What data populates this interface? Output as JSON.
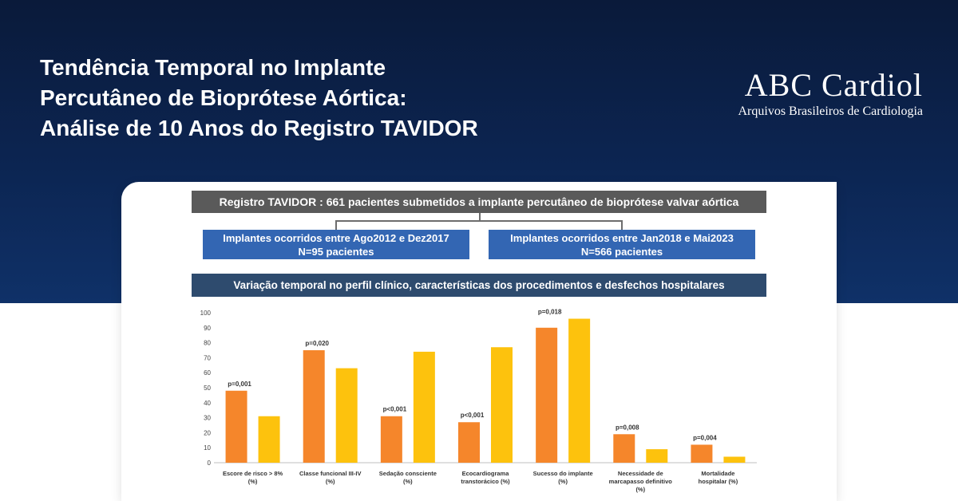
{
  "header": {
    "title_lines": [
      "Tendência Temporal no Implante",
      "Percutâneo de Bioprótese Aórtica:",
      "Análise de 10 Anos do Registro TAVIDOR"
    ],
    "brand_name": "ABC Cardiol",
    "brand_subtitle": "Arquivos Brasileiros de Cardiologia"
  },
  "flow": {
    "registry": "Registro TAVIDOR : 661 pacientes submetidos a implante percutâneo de bioprótese valvar aórtica",
    "period1_line1": "Implantes ocorridos entre Ago2012 e Dez2017",
    "period1_line2": "N=95 pacientes",
    "period2_line1": "Implantes ocorridos entre Jan2018 e Mai2023",
    "period2_line2": "N=566 pacientes",
    "variation": "Variação temporal no perfil clínico, características dos procedimentos e desfechos hospitalares"
  },
  "colors": {
    "period1": "#f5862b",
    "period2": "#fdc20d"
  },
  "chart_data": {
    "type": "bar",
    "title": "",
    "xlabel": "",
    "ylabel": "",
    "ylim": [
      0,
      100
    ],
    "yticks": [
      0,
      10,
      20,
      30,
      40,
      50,
      60,
      70,
      80,
      90,
      100
    ],
    "categories": [
      [
        "Escore de risco > 8%",
        "(%)"
      ],
      [
        "Classe funcional III-IV",
        "(%)"
      ],
      [
        "Sedação consciente",
        "(%)"
      ],
      [
        "Ecocardiograma",
        "transtorácico (%)"
      ],
      [
        "Sucesso do implante",
        "(%)"
      ],
      [
        "Necessidade de",
        "marcapasso definitivo",
        "(%)"
      ],
      [
        "Mortalidade",
        "hospitalar (%)"
      ]
    ],
    "p_values": [
      "p=0,001",
      "p=0,020",
      "p<0,001",
      "p<0,001",
      "p=0,018",
      "p=0,008",
      "p=0,004"
    ],
    "series": [
      {
        "name": "Ago2012–Dez2017",
        "values": [
          48,
          75,
          31,
          27,
          90,
          19,
          12
        ]
      },
      {
        "name": "Jan2018–Mai2023",
        "values": [
          31,
          63,
          74,
          77,
          96,
          9,
          4
        ]
      }
    ]
  }
}
